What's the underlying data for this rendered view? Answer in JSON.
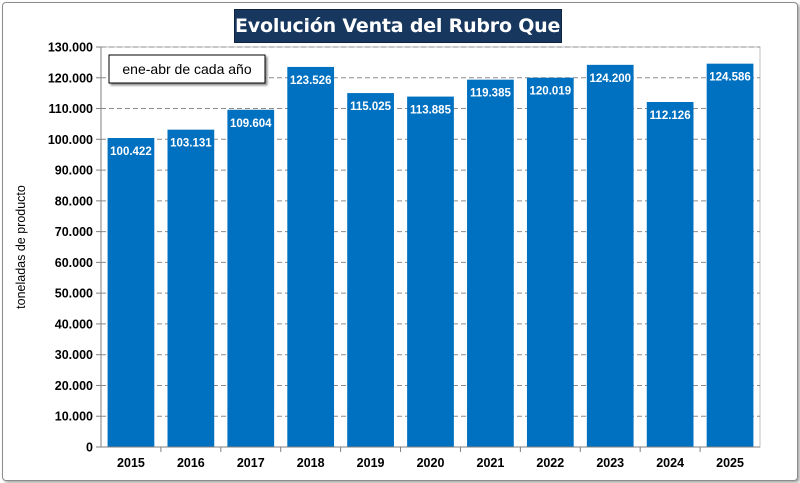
{
  "chart_data": {
    "type": "bar",
    "title": "Evolución Venta del Rubro Quesos",
    "annotation": "ene-abr de cada año",
    "ylabel": "toneladas de producto",
    "xlabel": "",
    "categories": [
      "2015",
      "2016",
      "2017",
      "2018",
      "2019",
      "2020",
      "2021",
      "2022",
      "2023",
      "2024",
      "2025"
    ],
    "values": [
      100422,
      103131,
      109604,
      123526,
      115025,
      113885,
      119385,
      120019,
      124200,
      112126,
      124586
    ],
    "value_labels": [
      "100.422",
      "103.131",
      "109.604",
      "123.526",
      "115.025",
      "113.885",
      "119.385",
      "120.019",
      "124.200",
      "112.126",
      "124.586"
    ],
    "ylim": [
      0,
      130000
    ],
    "ytick_step": 10000,
    "ytick_labels": [
      "0",
      "10.000",
      "20.000",
      "30.000",
      "40.000",
      "50.000",
      "60.000",
      "70.000",
      "80.000",
      "90.000",
      "100.000",
      "110.000",
      "120.000",
      "130.000"
    ],
    "grid": true,
    "bar_color": "#0070c0",
    "title_bg": "#17375e"
  }
}
